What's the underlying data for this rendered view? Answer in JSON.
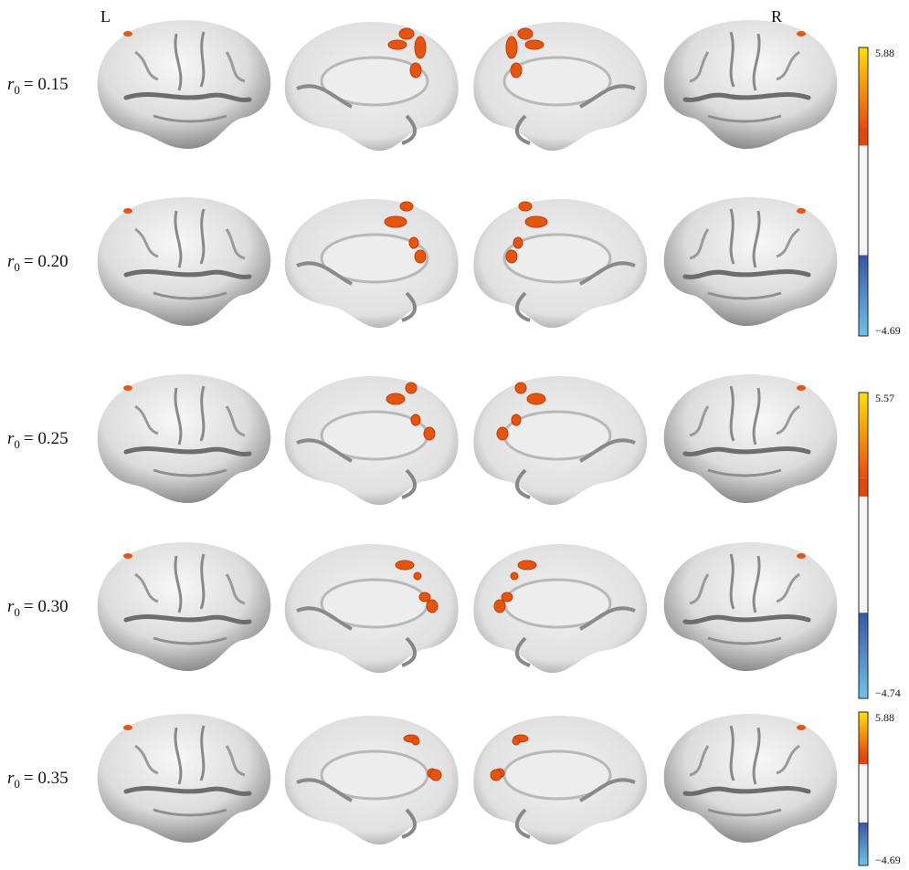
{
  "header": {
    "left": "L",
    "right": "R"
  },
  "rows": [
    {
      "symbol": "r",
      "subscript": "0",
      "relation": "= 0.15"
    },
    {
      "symbol": "r",
      "subscript": "0",
      "relation": "= 0.20"
    },
    {
      "symbol": "r",
      "subscript": "0",
      "relation": "= 0.25"
    },
    {
      "symbol": "r",
      "subscript": "0",
      "relation": "= 0.30"
    },
    {
      "symbol": "r",
      "subscript": "0",
      "relation": "= 0.35"
    }
  ],
  "colorbars": [
    {
      "max": "5.88",
      "min": "−4.69"
    },
    {
      "max": "5.57",
      "min": "−4.74"
    },
    {
      "max": "5.88",
      "min": "−4.69"
    }
  ]
}
